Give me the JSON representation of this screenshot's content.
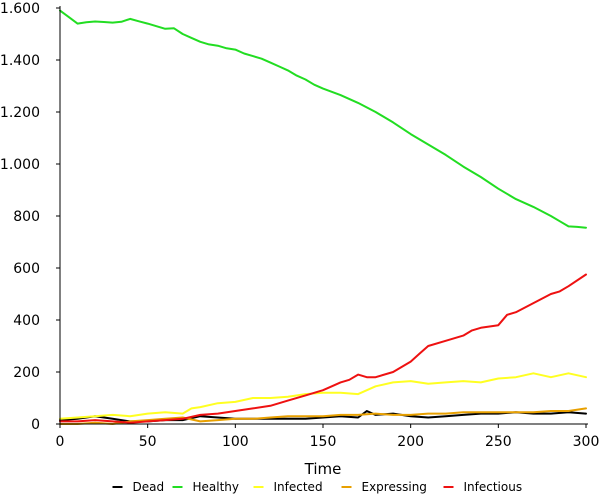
{
  "chart_data": {
    "type": "line",
    "title": "",
    "xlabel": "Time",
    "ylabel": "",
    "xlim": [
      0,
      300
    ],
    "ylim": [
      0,
      1600
    ],
    "xticks": [
      0,
      50,
      100,
      150,
      200,
      250,
      300
    ],
    "xtick_labels": [
      "0",
      "50",
      "100",
      "150",
      "200",
      "250",
      "300"
    ],
    "yticks": [
      0,
      200,
      400,
      600,
      800,
      1000,
      1200,
      1400,
      1600
    ],
    "ytick_labels": [
      "0",
      "200",
      "400",
      "600",
      "800",
      "1.000",
      "1.200",
      "1.400",
      "1.600"
    ],
    "grid": false,
    "legend_position": "bottom",
    "series": [
      {
        "name": "Dead",
        "color": "#000000",
        "x": [
          0,
          10,
          20,
          30,
          40,
          50,
          60,
          70,
          80,
          90,
          100,
          110,
          120,
          130,
          140,
          150,
          160,
          170,
          175,
          180,
          190,
          200,
          210,
          220,
          230,
          240,
          250,
          260,
          270,
          280,
          290,
          300
        ],
        "y": [
          15,
          20,
          30,
          20,
          10,
          10,
          15,
          15,
          30,
          25,
          20,
          20,
          20,
          20,
          20,
          25,
          30,
          25,
          50,
          35,
          40,
          30,
          25,
          30,
          35,
          40,
          40,
          45,
          40,
          40,
          45,
          40
        ]
      },
      {
        "name": "Healthy",
        "color": "#22dd22",
        "x": [
          0,
          5,
          10,
          15,
          20,
          25,
          30,
          35,
          40,
          45,
          50,
          55,
          60,
          65,
          70,
          75,
          80,
          85,
          90,
          95,
          100,
          105,
          110,
          115,
          120,
          125,
          130,
          135,
          140,
          145,
          150,
          160,
          170,
          180,
          190,
          200,
          210,
          220,
          230,
          240,
          250,
          260,
          270,
          280,
          285,
          290,
          295,
          300
        ],
        "y": [
          1590,
          1565,
          1540,
          1545,
          1548,
          1546,
          1544,
          1547,
          1558,
          1549,
          1540,
          1530,
          1520,
          1522,
          1500,
          1485,
          1470,
          1460,
          1455,
          1445,
          1440,
          1425,
          1415,
          1405,
          1390,
          1375,
          1360,
          1340,
          1325,
          1305,
          1290,
          1265,
          1235,
          1200,
          1160,
          1115,
          1075,
          1035,
          990,
          950,
          905,
          865,
          835,
          800,
          780,
          760,
          758,
          755
        ]
      },
      {
        "name": "Infected",
        "color": "#ffff22",
        "x": [
          0,
          10,
          20,
          30,
          40,
          50,
          60,
          70,
          75,
          80,
          90,
          100,
          110,
          120,
          130,
          140,
          150,
          160,
          170,
          180,
          190,
          200,
          210,
          220,
          230,
          240,
          250,
          260,
          270,
          280,
          290,
          300
        ],
        "y": [
          20,
          25,
          30,
          35,
          30,
          40,
          45,
          40,
          60,
          65,
          80,
          85,
          100,
          100,
          105,
          115,
          120,
          120,
          115,
          145,
          160,
          165,
          155,
          160,
          165,
          160,
          175,
          180,
          195,
          180,
          195,
          180
        ]
      },
      {
        "name": "Expressing",
        "color": "#e8a000",
        "x": [
          0,
          10,
          20,
          30,
          40,
          50,
          60,
          70,
          80,
          90,
          100,
          110,
          120,
          130,
          140,
          150,
          160,
          170,
          180,
          190,
          200,
          210,
          220,
          230,
          240,
          250,
          260,
          270,
          280,
          290,
          300
        ],
        "y": [
          0,
          0,
          5,
          0,
          10,
          15,
          20,
          25,
          10,
          15,
          20,
          20,
          25,
          30,
          30,
          30,
          35,
          35,
          40,
          35,
          35,
          40,
          40,
          45,
          45,
          45,
          45,
          45,
          50,
          50,
          60
        ]
      },
      {
        "name": "Infectious",
        "color": "#ee1111",
        "x": [
          0,
          10,
          20,
          30,
          40,
          50,
          60,
          70,
          80,
          90,
          100,
          110,
          120,
          130,
          140,
          150,
          155,
          160,
          165,
          170,
          175,
          180,
          190,
          200,
          205,
          210,
          220,
          230,
          235,
          240,
          245,
          250,
          255,
          260,
          270,
          280,
          285,
          290,
          300
        ],
        "y": [
          10,
          10,
          15,
          10,
          5,
          10,
          15,
          20,
          35,
          40,
          50,
          60,
          70,
          90,
          110,
          130,
          145,
          160,
          170,
          190,
          180,
          180,
          200,
          240,
          270,
          300,
          320,
          340,
          360,
          370,
          375,
          380,
          420,
          430,
          465,
          500,
          510,
          530,
          575
        ]
      }
    ]
  }
}
